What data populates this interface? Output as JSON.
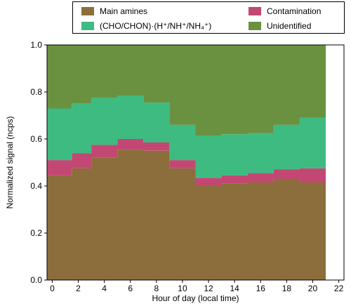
{
  "chart_data": {
    "type": "area",
    "chart_style": "stacked step area",
    "xlabel": "Hour of day (local time)",
    "ylabel": "Normalized signal (ncps)",
    "xlim": [
      0,
      22
    ],
    "ylim": [
      0,
      1.0
    ],
    "x_ticks": [
      0,
      2,
      4,
      6,
      8,
      10,
      12,
      14,
      16,
      18,
      20,
      22
    ],
    "x_tick_labels": [
      "0",
      "2",
      "4",
      "6",
      "8",
      "10",
      "12",
      "14",
      "16",
      "18",
      "20",
      "22"
    ],
    "y_ticks": [
      0,
      0.2,
      0.4,
      0.6,
      0.8,
      1.0
    ],
    "y_tick_labels": [
      "0.0",
      "0.2",
      "0.4",
      "0.6",
      "0.8",
      "1.0"
    ],
    "grid": false,
    "legend_position": "top, above plot",
    "hour_bins": [
      0,
      1.5,
      3,
      5,
      7,
      9,
      11,
      13,
      15,
      17,
      19,
      21,
      23
    ],
    "series": [
      {
        "name": "Main amines",
        "color": "#8b6e3c",
        "values": [
          0.445,
          0.475,
          0.52,
          0.555,
          0.55,
          0.475,
          0.4,
          0.41,
          0.415,
          0.43,
          0.415
        ]
      },
      {
        "name": "Contamination",
        "color": "#c24873",
        "values": [
          0.065,
          0.065,
          0.055,
          0.045,
          0.035,
          0.035,
          0.035,
          0.035,
          0.04,
          0.04,
          0.06
        ]
      },
      {
        "name": "(CHO/CHON)·(H⁺/NH⁺/NH₄⁺)",
        "color": "#3dbb80",
        "values": [
          0.22,
          0.21,
          0.2,
          0.185,
          0.17,
          0.15,
          0.18,
          0.175,
          0.17,
          0.19,
          0.215
        ]
      },
      {
        "name": "Unidentified",
        "color": "#6a9140",
        "values": [
          0.27,
          0.25,
          0.225,
          0.215,
          0.245,
          0.34,
          0.385,
          0.38,
          0.375,
          0.34,
          0.31
        ]
      }
    ]
  },
  "legend": {
    "main_amines": "Main amines",
    "contamination": "Contamination",
    "cho_chon": "(CHO/CHON)·(H⁺/NH⁺/NH₄⁺)",
    "unidentified": "Unidentified"
  }
}
